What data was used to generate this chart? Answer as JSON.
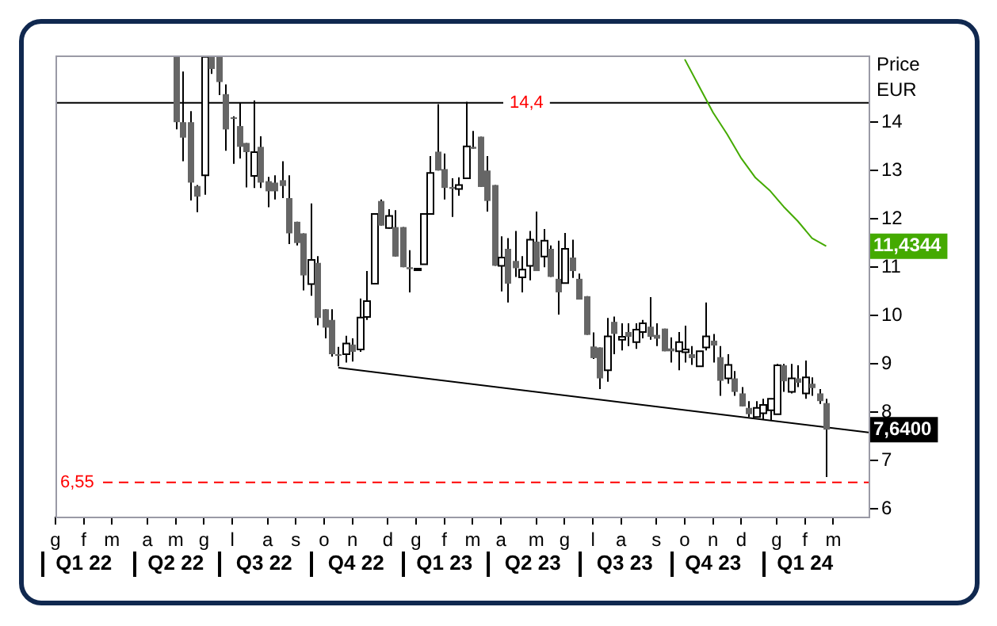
{
  "chart_data": {
    "type": "candlestick",
    "ylabel": "Price EUR",
    "categories": [
      "g",
      null,
      null,
      null,
      "f",
      null,
      null,
      null,
      "m",
      null,
      null,
      null,
      null,
      "a",
      null,
      null,
      null,
      "m",
      null,
      null,
      null,
      "g",
      null,
      null,
      null,
      "l",
      null,
      null,
      null,
      null,
      "a",
      null,
      null,
      null,
      "s",
      null,
      null,
      null,
      "o",
      null,
      null,
      null,
      "n",
      null,
      null,
      null,
      null,
      "d",
      null,
      null,
      null,
      "g",
      null,
      null,
      null,
      "f",
      null,
      null,
      null,
      "m",
      null,
      null,
      null,
      "a",
      null,
      null,
      null,
      null,
      "m",
      null,
      null,
      null,
      "g",
      null,
      null,
      null,
      "l",
      null,
      null,
      null,
      "a",
      null,
      null,
      null,
      null,
      "s",
      null,
      null,
      null,
      "o",
      null,
      null,
      null,
      "n",
      null,
      null,
      null,
      "d",
      null,
      null,
      null,
      null,
      "g",
      null,
      null,
      null,
      "f",
      null,
      null,
      null,
      "m",
      null,
      null,
      null,
      null,
      null
    ],
    "series": [
      {
        "type": "candlestick",
        "colors": [
          null,
          null,
          null,
          null,
          null,
          null,
          null,
          null,
          null,
          null,
          null,
          null,
          null,
          null,
          null,
          null,
          null,
          "#666666",
          "#666666",
          "#666666",
          "#666666",
          "#ffffff",
          "#666666",
          "#666666",
          "#666666",
          "#666666",
          "#666666",
          "#666666",
          "#ffffff",
          "#666666",
          "#666666",
          "#666666",
          "#666666",
          "#666666",
          "#666666",
          "#666666",
          "#ffffff",
          "#666666",
          "#666666",
          "#666666",
          "#666666",
          "#ffffff",
          "#666666",
          "#ffffff",
          "#ffffff",
          "#ffffff",
          "#666666",
          "#ffffff",
          "#666666",
          "#666666",
          "#666666",
          "#ffffff",
          "#ffffff",
          "#ffffff",
          "#666666",
          "#666666",
          "#666666",
          "#ffffff",
          "#ffffff",
          "#666666",
          "#666666",
          "#666666",
          "#666666",
          "#ffffff",
          "#666666",
          "#666666",
          "#ffffff",
          "#ffffff",
          "#666666",
          "#ffffff",
          "#666666",
          "#666666",
          "#ffffff",
          "#666666",
          "#666666",
          "#666666",
          "#666666",
          "#666666",
          "#ffffff",
          "#666666",
          "#ffffff",
          "#666666",
          "#ffffff",
          "#ffffff",
          "#666666",
          "#666666",
          "#666666",
          "#666666",
          "#ffffff",
          "#ffffff",
          "#666666",
          "#ffffff",
          "#ffffff",
          "#666666",
          "#666666",
          "#ffffff",
          "#666666",
          "#666666",
          "#666666",
          "#ffffff",
          "#ffffff",
          "#ffffff",
          "#ffffff",
          "#666666",
          "#ffffff",
          "#666666",
          "#ffffff",
          "#666666",
          "#666666",
          "#666666",
          null,
          null,
          null,
          null,
          null,
          null
        ],
        "ohlc": [
          null,
          null,
          null,
          null,
          null,
          null,
          null,
          null,
          null,
          null,
          null,
          null,
          null,
          null,
          null,
          null,
          null,
          [
            15.35,
            15.35,
            13.85,
            14.0
          ],
          [
            14.0,
            15.05,
            13.19,
            13.68
          ],
          [
            14.0,
            14.23,
            12.38,
            12.75
          ],
          [
            12.68,
            12.7,
            12.14,
            12.46
          ],
          [
            12.9,
            15.35,
            12.5,
            15.35
          ],
          [
            15.35,
            15.35,
            15.0,
            15.1
          ],
          [
            15.35,
            15.35,
            14.56,
            14.83
          ],
          [
            14.58,
            14.78,
            13.41,
            13.85
          ],
          [
            14.1,
            14.12,
            13.14,
            14.08
          ],
          [
            13.92,
            14.4,
            13.25,
            13.49
          ],
          [
            13.57,
            13.57,
            12.65,
            13.38
          ],
          [
            12.89,
            14.45,
            12.64,
            13.38
          ],
          [
            13.49,
            13.71,
            12.64,
            12.75
          ],
          [
            12.78,
            12.87,
            12.24,
            12.57
          ],
          [
            12.75,
            12.9,
            12.4,
            12.57
          ],
          [
            12.8,
            13.19,
            12.43,
            12.68
          ],
          [
            12.43,
            12.9,
            11.48,
            11.7
          ],
          [
            11.94,
            11.94,
            11.45,
            11.5
          ],
          [
            11.7,
            11.7,
            10.52,
            10.83
          ],
          [
            10.65,
            12.32,
            10.41,
            11.15
          ],
          [
            11.09,
            11.23,
            9.8,
            9.95
          ],
          [
            10.13,
            10.13,
            9.53,
            9.75
          ],
          [
            9.91,
            10.13,
            9.15,
            9.2
          ],
          [
            9.2,
            9.35,
            8.95,
            9.18
          ],
          [
            9.2,
            9.58,
            9.03,
            9.42
          ],
          [
            9.4,
            9.53,
            9.05,
            9.25
          ],
          [
            9.3,
            10.35,
            9.25,
            9.96
          ],
          [
            9.97,
            10.92,
            9.91,
            10.3
          ],
          [
            10.66,
            12.1,
            10.66,
            12.1
          ],
          [
            12.37,
            12.4,
            11.86,
            11.86
          ],
          [
            11.81,
            12.2,
            11.8,
            12.06
          ],
          [
            11.83,
            12.18,
            11.22,
            11.22
          ],
          [
            11.83,
            11.83,
            11.0,
            11.0
          ],
          [
            11.0,
            11.35,
            10.48,
            10.96
          ],
          [
            10.95,
            10.97,
            10.95,
            10.97
          ],
          [
            11.06,
            12.1,
            11.06,
            12.1
          ],
          [
            12.1,
            13.3,
            12.1,
            12.95
          ],
          [
            13.39,
            14.37,
            13.0,
            13.0
          ],
          [
            13.03,
            13.35,
            12.4,
            12.64
          ],
          [
            12.66,
            12.84,
            12.04,
            12.62
          ],
          [
            12.62,
            12.86,
            12.48,
            12.7
          ],
          [
            12.84,
            14.42,
            12.84,
            13.5
          ],
          [
            13.49,
            13.82,
            13.45,
            13.45
          ],
          [
            13.7,
            13.7,
            12.66,
            12.66
          ],
          [
            13.0,
            13.3,
            12.15,
            12.37
          ],
          [
            12.7,
            12.7,
            11.03,
            11.03
          ],
          [
            11.03,
            11.64,
            10.5,
            11.2
          ],
          [
            11.38,
            11.6,
            10.27,
            10.66
          ],
          [
            11.13,
            11.75,
            10.8,
            10.98
          ],
          [
            10.79,
            11.23,
            10.48,
            10.95
          ],
          [
            11.03,
            11.75,
            10.73,
            11.57
          ],
          [
            11.53,
            12.15,
            10.92,
            10.92
          ],
          [
            11.22,
            11.79,
            11.0,
            11.55
          ],
          [
            11.38,
            11.45,
            10.8,
            10.8
          ],
          [
            10.76,
            11.55,
            10.02,
            10.48
          ],
          [
            10.67,
            11.71,
            10.67,
            11.38
          ],
          [
            11.2,
            11.57,
            10.78,
            10.92
          ],
          [
            10.76,
            10.87,
            10.33,
            10.33
          ],
          [
            10.4,
            10.4,
            9.6,
            9.6
          ],
          [
            9.36,
            9.65,
            9.1,
            9.12
          ],
          [
            9.34,
            9.34,
            8.48,
            8.7
          ],
          [
            8.87,
            9.95,
            8.63,
            9.57
          ],
          [
            9.87,
            9.98,
            9.2,
            9.62
          ],
          [
            9.5,
            9.84,
            9.28,
            9.56
          ],
          [
            9.66,
            9.84,
            9.37,
            9.56
          ],
          [
            9.45,
            9.84,
            9.31,
            9.71
          ],
          [
            9.66,
            9.91,
            9.53,
            9.84
          ],
          [
            9.77,
            10.38,
            9.5,
            9.56
          ],
          [
            9.6,
            9.84,
            9.37,
            9.52
          ],
          [
            9.73,
            9.73,
            9.26,
            9.26
          ],
          [
            9.32,
            9.55,
            9.03,
            9.26
          ],
          [
            9.26,
            9.66,
            8.87,
            9.45
          ],
          [
            9.24,
            9.79,
            9.03,
            9.3
          ],
          [
            9.2,
            9.37,
            8.98,
            9.12
          ],
          [
            8.95,
            9.26,
            8.95,
            9.26
          ],
          [
            9.34,
            10.27,
            9.28,
            9.57
          ],
          [
            9.48,
            9.62,
            9.03,
            9.38
          ],
          [
            9.14,
            9.37,
            8.34,
            8.65
          ],
          [
            8.7,
            9.2,
            8.59,
            8.98
          ],
          [
            8.7,
            8.85,
            8.34,
            8.42
          ],
          [
            8.39,
            8.52,
            8.12,
            8.12
          ],
          [
            8.09,
            8.23,
            7.9,
            7.96
          ],
          [
            7.9,
            8.23,
            7.9,
            8.09
          ],
          [
            7.98,
            8.28,
            7.85,
            8.15
          ],
          [
            8.04,
            8.28,
            7.83,
            8.28
          ],
          [
            7.96,
            9.0,
            7.96,
            8.97
          ],
          [
            8.97,
            9.0,
            8.42,
            8.64
          ],
          [
            8.42,
            9.0,
            8.39,
            8.7
          ],
          [
            8.7,
            8.97,
            8.52,
            8.61
          ],
          [
            8.39,
            9.07,
            8.28,
            8.72
          ],
          [
            8.59,
            8.72,
            8.34,
            8.5
          ],
          [
            8.39,
            8.48,
            8.17,
            8.23
          ],
          [
            8.19,
            8.28,
            6.66,
            7.64
          ],
          null,
          null,
          null,
          null,
          null,
          null
        ]
      },
      {
        "type": "line",
        "color": "#44aa00",
        "values": [
          null,
          null,
          null,
          null,
          null,
          null,
          null,
          null,
          null,
          null,
          null,
          null,
          null,
          null,
          null,
          null,
          null,
          null,
          null,
          null,
          null,
          null,
          null,
          null,
          null,
          null,
          null,
          null,
          null,
          null,
          null,
          null,
          null,
          null,
          null,
          null,
          null,
          null,
          null,
          null,
          null,
          null,
          null,
          null,
          null,
          null,
          null,
          null,
          null,
          null,
          null,
          null,
          null,
          null,
          null,
          null,
          null,
          null,
          null,
          null,
          null,
          null,
          null,
          null,
          null,
          null,
          null,
          null,
          null,
          null,
          null,
          null,
          null,
          null,
          null,
          null,
          null,
          null,
          null,
          null,
          null,
          null,
          null,
          null,
          null,
          null,
          null,
          null,
          null,
          15.3,
          null,
          14.75,
          null,
          14.2,
          null,
          13.75,
          null,
          13.25,
          null,
          12.85,
          null,
          12.59,
          null,
          12.25,
          null,
          11.95,
          null,
          11.6,
          null,
          11.4344,
          null,
          null,
          null,
          null,
          null,
          null
        ]
      },
      {
        "type": "line",
        "color": "#000000",
        "values": [
          null,
          null,
          null,
          null,
          null,
          null,
          null,
          null,
          null,
          null,
          null,
          null,
          null,
          null,
          null,
          null,
          null,
          null,
          null,
          null,
          null,
          null,
          null,
          null,
          null,
          null,
          null,
          null,
          null,
          null,
          null,
          null,
          null,
          null,
          null,
          null,
          null,
          null,
          null,
          null,
          8.92,
          null,
          null,
          null,
          null,
          null,
          null,
          null,
          null,
          null,
          null,
          null,
          null,
          null,
          null,
          null,
          null,
          null,
          null,
          null,
          null,
          null,
          null,
          null,
          null,
          null,
          null,
          null,
          null,
          null,
          null,
          null,
          null,
          null,
          null,
          null,
          null,
          null,
          null,
          null,
          null,
          null,
          null,
          null,
          null,
          null,
          null,
          null,
          null,
          null,
          null,
          null,
          null,
          null,
          null,
          null,
          null,
          null,
          null,
          null,
          null,
          null,
          null,
          null,
          null,
          null,
          null,
          null,
          null,
          null,
          null,
          null,
          null,
          null,
          null,
          7.58
        ]
      }
    ],
    "ylim": [
      5.84,
      15.38
    ],
    "yticks": [
      6,
      7,
      8,
      9,
      10,
      11,
      12,
      13,
      14
    ],
    "ref_lines": [
      {
        "axis": "y",
        "value": 14.4,
        "label": "14,4",
        "color": "#000000"
      },
      {
        "axis": "y",
        "value": 6.55,
        "label": "6,55",
        "color": "#ff0000",
        "line_style": "dashed"
      }
    ],
    "annotations": [
      "Q1 22",
      "Q2 22",
      "Q3 22",
      "Q4 22",
      "Q1 23",
      "Q2 23",
      "Q3 23",
      "Q4 23",
      "Q1 24",
      "7,6400",
      "11,4344"
    ],
    "grid": false,
    "legend": false
  }
}
